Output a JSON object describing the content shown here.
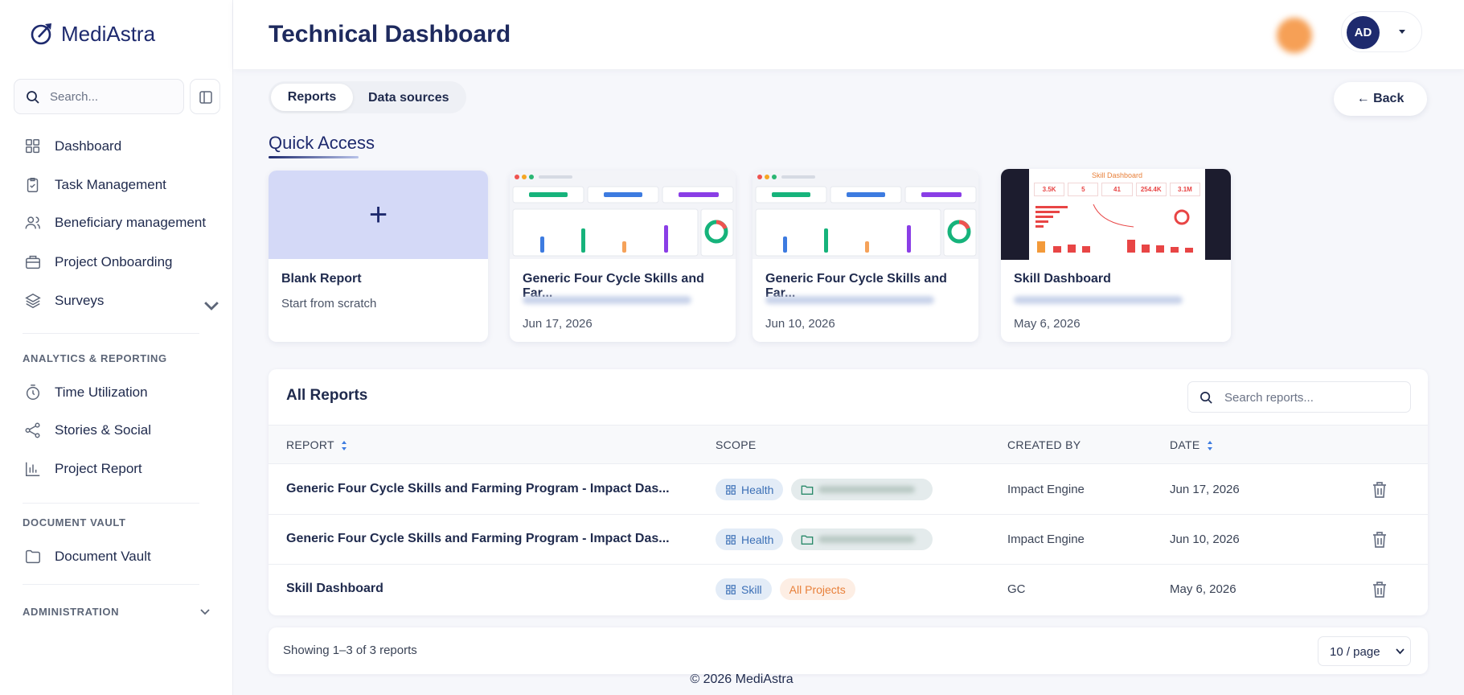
{
  "sidebar": {
    "brand": "MediAstra",
    "search": "Search...",
    "nav": [
      "Dashboard",
      "Task Management",
      "Beneficiary management",
      "Project Onboarding",
      "Surveys"
    ],
    "sections": [
      {
        "title": "ANALYTICS & REPORTING",
        "items": [
          "Time Utilization",
          "Stories & Social",
          "Project Report"
        ]
      },
      {
        "title": "DOCUMENT VAULT",
        "items": [
          "Document Vault"
        ]
      },
      {
        "title": "ADMINISTRATION"
      }
    ]
  },
  "header": {
    "title": "Technical Dashboard",
    "user_initials": "AD"
  },
  "tabs": [
    "Reports",
    "Data sources"
  ],
  "back": "← Back",
  "quick_access": {
    "title": "Quick Access",
    "cards": [
      {
        "title": "Blank Report",
        "subtitle": "Start from scratch"
      },
      {
        "title": "Generic Four Cycle Skills and Far...",
        "date": "Jun 17, 2026"
      },
      {
        "title": "Generic Four Cycle Skills and Far...",
        "date": "Jun 10, 2026"
      },
      {
        "title": "Skill Dashboard",
        "date": "May 6, 2026",
        "preview": {
          "title": "Skill Dashboard",
          "kpis": [
            "3.5K",
            "5",
            "41",
            "254.4K",
            "3.1M"
          ]
        }
      }
    ]
  },
  "all_reports": {
    "title": "All Reports",
    "search": "Search reports...",
    "columns": [
      "REPORT",
      "SCOPE",
      "CREATED BY",
      "DATE"
    ],
    "rows": [
      {
        "report": "Generic Four Cycle Skills and Farming Program - Impact Das...",
        "scope": [
          "Health"
        ],
        "created_by": "Impact Engine",
        "date": "Jun 17, 2026"
      },
      {
        "report": "Generic Four Cycle Skills and Farming Program - Impact Das...",
        "scope": [
          "Health"
        ],
        "created_by": "Impact Engine",
        "date": "Jun 10, 2026"
      },
      {
        "report": "Skill Dashboard",
        "scope": [
          "Skill",
          "All Projects"
        ],
        "created_by": "GC",
        "date": "May 6, 2026"
      }
    ],
    "showing": "Showing 1–3 of 3 reports",
    "page_size": "10 / page"
  },
  "footer": "© 2026 MediAstra"
}
